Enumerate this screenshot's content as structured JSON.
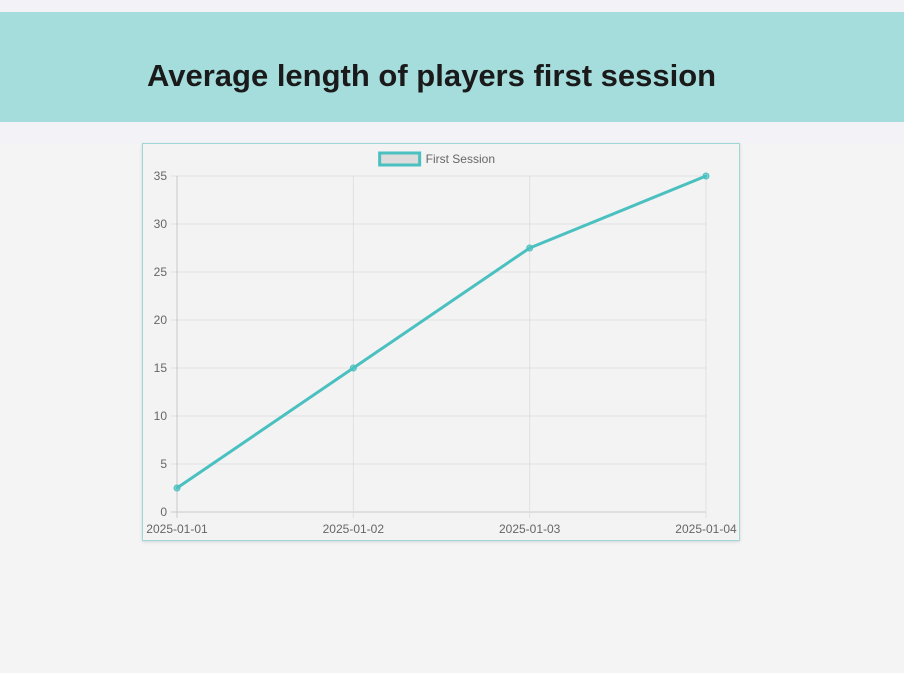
{
  "header": {
    "title": "Average length of players first session"
  },
  "chart_data": {
    "type": "line",
    "title": "",
    "xlabel": "",
    "ylabel": "",
    "categories": [
      "2025-01-01",
      "2025-01-02",
      "2025-01-03",
      "2025-01-04"
    ],
    "series": [
      {
        "name": "First Session",
        "values": [
          2.5,
          15,
          27.5,
          35
        ],
        "color": "#4bc0c0",
        "fill": "#dcdcdc"
      }
    ],
    "ylim": [
      0,
      35
    ],
    "yticks": [
      0,
      5,
      10,
      15,
      20,
      25,
      30,
      35
    ],
    "grid": true,
    "legend_position": "top-center"
  }
}
